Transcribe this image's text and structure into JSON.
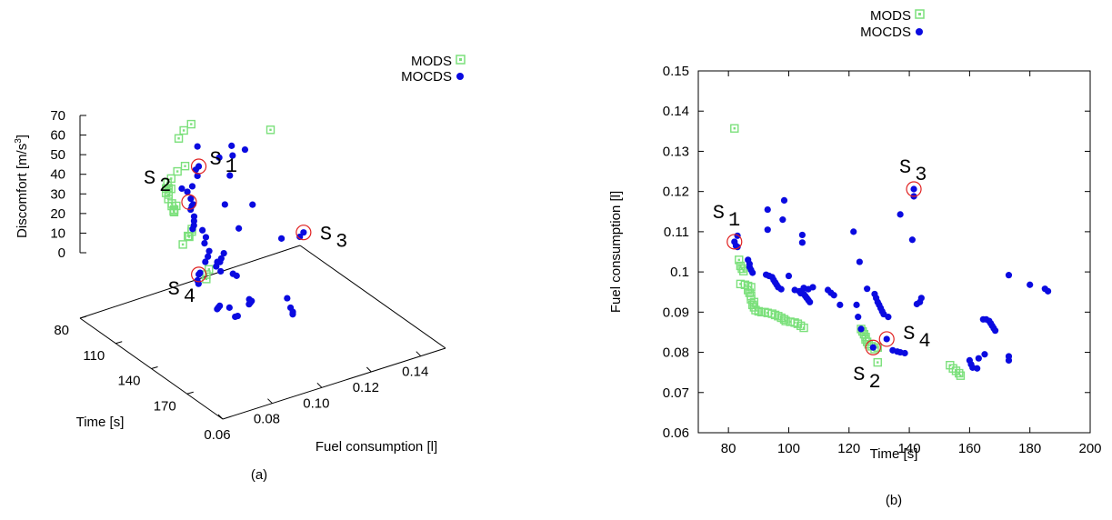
{
  "caption_a": "(a)",
  "caption_b": "(b)",
  "legend": {
    "mods": "MODS",
    "mocds": "MOCDS",
    "mods_color": "#7be07b",
    "mocds_color": "#0a0ae0"
  },
  "highlight_color": "#e02020",
  "chart_data": [
    {
      "type": "scatter",
      "panel": "a",
      "projection": "3d",
      "xlabel": "Fuel consumption [l]",
      "ylabel": "Time [s]",
      "zlabel_prefix": "Discomfort [m/s",
      "zlabel_exp": "3",
      "zlabel_suffix": "]",
      "x_ticks": [
        "0.06",
        "0.08",
        "0.10",
        "0.12",
        "0.14"
      ],
      "y_ticks": [
        "80",
        "110",
        "140",
        "170"
      ],
      "z_ticks": [
        "0",
        "10",
        "20",
        "30",
        "40",
        "50",
        "60",
        "70"
      ],
      "xlim": [
        0.06,
        0.15
      ],
      "ylim": [
        80,
        200
      ],
      "zlim": [
        0,
        70
      ],
      "annotations": [
        {
          "label": "S",
          "sub": "1",
          "fuel": 0.107,
          "time": 82,
          "disc": 26
        },
        {
          "label": "S",
          "sub": "2",
          "fuel": 0.081,
          "time": 128,
          "disc": 38
        },
        {
          "label": "S",
          "sub": "3",
          "fuel": 0.121,
          "time": 141,
          "disc": 12
        },
        {
          "label": "S",
          "sub": "4",
          "fuel": 0.083,
          "time": 132,
          "disc": 2
        }
      ],
      "series": [
        {
          "name": "MODS",
          "points": [
            [
              0.136,
              82,
              33
            ],
            [
              0.103,
              84,
              50
            ],
            [
              0.1,
              84,
              48
            ],
            [
              0.097,
              86,
              46
            ],
            [
              0.096,
              87,
              30
            ],
            [
              0.093,
              88,
              28
            ],
            [
              0.091,
              89,
              27
            ],
            [
              0.09,
              90,
              25
            ],
            [
              0.089,
              92,
              24
            ],
            [
              0.089,
              94,
              24
            ],
            [
              0.088,
              96,
              23
            ],
            [
              0.088,
              99,
              22
            ],
            [
              0.087,
              101,
              22
            ],
            [
              0.087,
              103,
              21
            ],
            [
              0.086,
              105,
              21
            ],
            [
              0.085,
              122,
              20
            ],
            [
              0.084,
              124,
              20
            ],
            [
              0.082,
              125,
              19
            ],
            [
              0.082,
              126,
              19
            ],
            [
              0.078,
              129,
              18
            ],
            [
              0.077,
              153,
              16
            ],
            [
              0.075,
              155,
              15
            ],
            [
              0.074,
              157,
              14
            ],
            [
              0.096,
              86,
              12
            ],
            [
              0.094,
              88,
              11
            ],
            [
              0.092,
              90,
              24
            ],
            [
              0.09,
              92,
              26
            ],
            [
              0.101,
              83,
              29
            ]
          ]
        },
        {
          "name": "MOCDS",
          "points": [
            [
              0.107,
              82,
              26
            ],
            [
              0.106,
              83,
              22
            ],
            [
              0.102,
              87,
              20
            ],
            [
              0.1,
              87,
              18
            ],
            [
              0.099,
              92,
              17
            ],
            [
              0.099,
              94,
              15
            ],
            [
              0.098,
              95,
              15
            ],
            [
              0.097,
              96,
              14
            ],
            [
              0.115,
              93,
              38
            ],
            [
              0.118,
              98,
              37
            ],
            [
              0.113,
              98,
              36
            ],
            [
              0.11,
              93,
              34
            ],
            [
              0.109,
              104,
              30
            ],
            [
              0.107,
              104,
              16
            ],
            [
              0.096,
              101,
              13
            ],
            [
              0.095,
              103,
              12
            ],
            [
              0.094,
              105,
              11
            ],
            [
              0.093,
              106,
              10
            ],
            [
              0.096,
              108,
              9
            ],
            [
              0.095,
              113,
              8
            ],
            [
              0.093,
              116,
              7
            ],
            [
              0.092,
              122,
              6
            ],
            [
              0.11,
              121,
              22
            ],
            [
              0.103,
              124,
              14
            ],
            [
              0.091,
              123,
              4
            ],
            [
              0.089,
              125,
              3
            ],
            [
              0.096,
              126,
              5
            ],
            [
              0.094,
              128,
              4
            ],
            [
              0.093,
              129,
              3
            ],
            [
              0.091,
              130,
              2
            ],
            [
              0.084,
              131,
              2
            ],
            [
              0.083,
              132,
              2
            ],
            [
              0.081,
              135,
              1
            ],
            [
              0.08,
              138,
              1
            ],
            [
              0.121,
              141,
              12
            ],
            [
              0.119,
              142,
              11
            ],
            [
              0.114,
              137,
              10
            ],
            [
              0.092,
              142,
              3
            ],
            [
              0.093,
              143,
              2
            ],
            [
              0.099,
              173,
              1
            ],
            [
              0.097,
              180,
              0
            ],
            [
              0.096,
              184,
              0
            ],
            [
              0.095,
              186,
              0
            ],
            [
              0.088,
              164,
              1
            ],
            [
              0.088,
              166,
              1
            ],
            [
              0.087,
              167,
              1
            ],
            [
              0.086,
              168,
              1
            ],
            [
              0.08,
              164,
              0
            ],
            [
              0.078,
              160,
              0
            ],
            [
              0.077,
              161,
              0
            ],
            [
              0.076,
              162,
              0
            ],
            [
              0.079,
              173,
              0
            ],
            [
              0.078,
              173,
              0
            ],
            [
              0.09,
              133,
              6
            ],
            [
              0.088,
              140,
              5
            ],
            [
              0.106,
              83,
              37
            ],
            [
              0.101,
              92,
              31
            ],
            [
              0.092,
              99,
              28
            ]
          ]
        }
      ]
    },
    {
      "type": "scatter",
      "panel": "b",
      "xlabel": "Time [s]",
      "ylabel": "Fuel consumption [l]",
      "xlim": [
        70,
        200
      ],
      "ylim": [
        0.06,
        0.15
      ],
      "x_ticks": [
        "80",
        "100",
        "120",
        "140",
        "160",
        "180",
        "200"
      ],
      "y_ticks": [
        "0.06",
        "0.07",
        "0.08",
        "0.09",
        "0.1",
        "0.11",
        "0.12",
        "0.13",
        "0.14",
        "0.15"
      ],
      "annotations": [
        {
          "label": "S",
          "sub": "1",
          "x": 82,
          "y": 0.1075
        },
        {
          "label": "S",
          "sub": "2",
          "x": 128,
          "y": 0.0812
        },
        {
          "label": "S",
          "sub": "3",
          "x": 141.5,
          "y": 0.1206
        },
        {
          "label": "S",
          "sub": "4",
          "x": 132.5,
          "y": 0.0833
        }
      ],
      "series": [
        {
          "name": "MODS",
          "points": [
            [
              82,
              0.1357
            ],
            [
              83.5,
              0.103
            ],
            [
              84,
              0.1015
            ],
            [
              84.5,
              0.1008
            ],
            [
              85,
              0.1002
            ],
            [
              84,
              0.097
            ],
            [
              85.5,
              0.0968
            ],
            [
              86.5,
              0.0965
            ],
            [
              87.5,
              0.0962
            ],
            [
              86.5,
              0.0955
            ],
            [
              87,
              0.0948
            ],
            [
              87.5,
              0.094
            ],
            [
              87.5,
              0.0932
            ],
            [
              88.5,
              0.0925
            ],
            [
              88,
              0.0918
            ],
            [
              88.5,
              0.0912
            ],
            [
              89,
              0.0905
            ],
            [
              90,
              0.0902
            ],
            [
              91,
              0.09
            ],
            [
              92,
              0.09
            ],
            [
              93,
              0.0898
            ],
            [
              94.5,
              0.0896
            ],
            [
              95.5,
              0.0893
            ],
            [
              96.5,
              0.089
            ],
            [
              97.5,
              0.0886
            ],
            [
              98.5,
              0.0882
            ],
            [
              99,
              0.0878
            ],
            [
              100.5,
              0.0876
            ],
            [
              102,
              0.0874
            ],
            [
              103,
              0.0871
            ],
            [
              104,
              0.0866
            ],
            [
              105,
              0.0861
            ],
            [
              124,
              0.0858
            ],
            [
              124.5,
              0.0852
            ],
            [
              125,
              0.0845
            ],
            [
              125.5,
              0.0838
            ],
            [
              125.5,
              0.0832
            ],
            [
              126,
              0.0826
            ],
            [
              126.5,
              0.082
            ],
            [
              127.5,
              0.0815
            ],
            [
              129.5,
              0.0812
            ],
            [
              128.5,
              0.0808
            ],
            [
              129.5,
              0.0775
            ],
            [
              153.5,
              0.0768
            ],
            [
              154.5,
              0.076
            ],
            [
              155.5,
              0.0754
            ],
            [
              156.5,
              0.0748
            ],
            [
              157,
              0.0742
            ]
          ]
        },
        {
          "name": "MOCDS",
          "points": [
            [
              82,
              0.1075
            ],
            [
              82.5,
              0.1065
            ],
            [
              83,
              0.1062
            ],
            [
              86.5,
              0.103
            ],
            [
              87,
              0.102
            ],
            [
              87,
              0.1012
            ],
            [
              87.5,
              0.1005
            ],
            [
              88,
              0.0998
            ],
            [
              92.5,
              0.0993
            ],
            [
              93.5,
              0.099
            ],
            [
              94.5,
              0.0987
            ],
            [
              95,
              0.098
            ],
            [
              95.5,
              0.0974
            ],
            [
              96,
              0.0968
            ],
            [
              96.5,
              0.0962
            ],
            [
              97.5,
              0.0957
            ],
            [
              93,
              0.1155
            ],
            [
              98.5,
              0.1178
            ],
            [
              98,
              0.113
            ],
            [
              93,
              0.1105
            ],
            [
              104.5,
              0.1092
            ],
            [
              104.5,
              0.1073
            ],
            [
              105,
              0.096
            ],
            [
              106.5,
              0.0957
            ],
            [
              102,
              0.0955
            ],
            [
              103.5,
              0.0952
            ],
            [
              104,
              0.0947
            ],
            [
              105,
              0.0945
            ],
            [
              105.5,
              0.094
            ],
            [
              106,
              0.0935
            ],
            [
              106.5,
              0.093
            ],
            [
              107,
              0.0925
            ],
            [
              108,
              0.0962
            ],
            [
              113,
              0.0955
            ],
            [
              114,
              0.0948
            ],
            [
              115,
              0.0942
            ],
            [
              117,
              0.0918
            ],
            [
              121.5,
              0.11
            ],
            [
              123.5,
              0.1025
            ],
            [
              122.5,
              0.0918
            ],
            [
              123,
              0.0888
            ],
            [
              124,
              0.0858
            ],
            [
              126,
              0.0958
            ],
            [
              128.5,
              0.0945
            ],
            [
              129,
              0.0935
            ],
            [
              129.5,
              0.0925
            ],
            [
              130,
              0.0918
            ],
            [
              130.5,
              0.091
            ],
            [
              131,
              0.0902
            ],
            [
              131.5,
              0.0895
            ],
            [
              133,
              0.0888
            ],
            [
              128,
              0.0812
            ],
            [
              132.5,
              0.0833
            ],
            [
              134.5,
              0.0805
            ],
            [
              136,
              0.0802
            ],
            [
              137,
              0.08
            ],
            [
              138.5,
              0.0798
            ],
            [
              141.5,
              0.1206
            ],
            [
              141.5,
              0.1188
            ],
            [
              137,
              0.1143
            ],
            [
              141,
              0.108
            ],
            [
              142.5,
              0.092
            ],
            [
              143.5,
              0.0925
            ],
            [
              144,
              0.0935
            ],
            [
              164.5,
              0.0882
            ],
            [
              165.5,
              0.0882
            ],
            [
              166.5,
              0.0878
            ],
            [
              167,
              0.0872
            ],
            [
              167.5,
              0.0866
            ],
            [
              168,
              0.086
            ],
            [
              168.5,
              0.0854
            ],
            [
              173,
              0.0992
            ],
            [
              180,
              0.0968
            ],
            [
              185,
              0.0958
            ],
            [
              186,
              0.0952
            ],
            [
              160,
              0.078
            ],
            [
              160.5,
              0.077
            ],
            [
              161,
              0.0762
            ],
            [
              162.5,
              0.076
            ],
            [
              163,
              0.0785
            ],
            [
              165,
              0.0795
            ],
            [
              173,
              0.079
            ],
            [
              173,
              0.078
            ],
            [
              83,
              0.109
            ],
            [
              100,
              0.099
            ],
            [
              105,
              0.096
            ]
          ]
        }
      ]
    }
  ]
}
